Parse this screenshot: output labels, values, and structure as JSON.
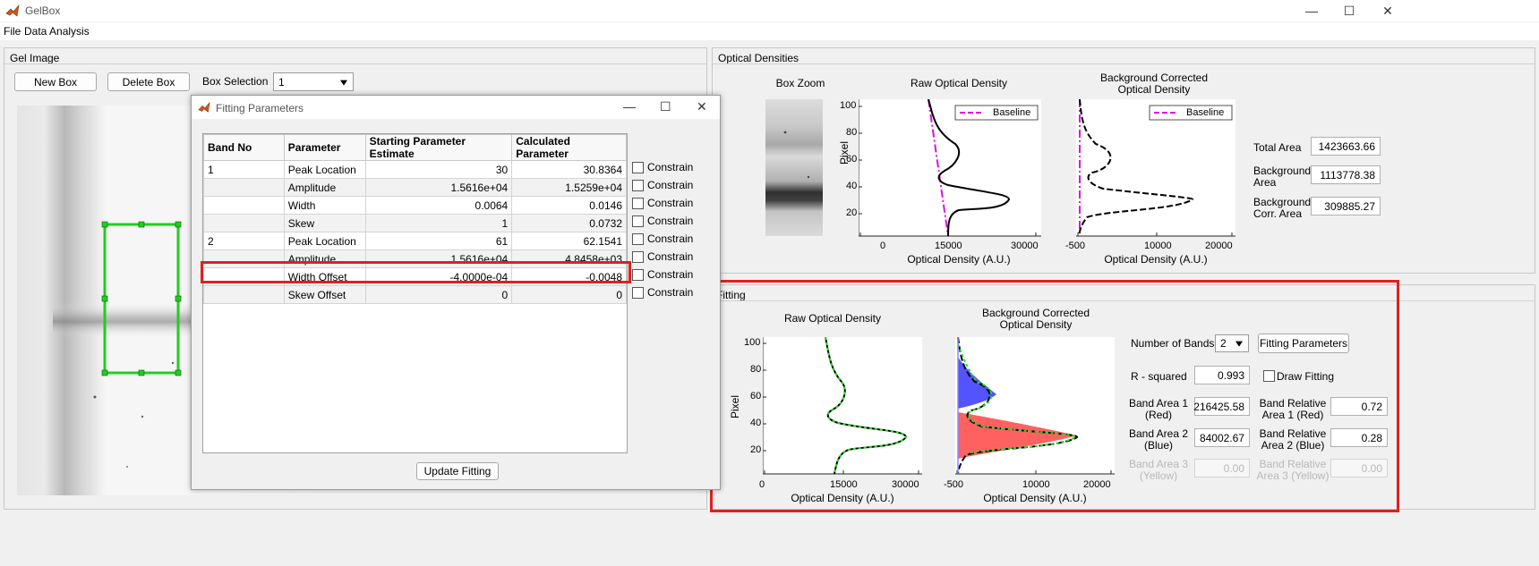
{
  "window": {
    "title": "GelBox",
    "minimize": "—",
    "maximize": "☐",
    "close": "✕"
  },
  "menu": {
    "items": [
      "File",
      "Data Analysis"
    ]
  },
  "gel_panel": {
    "title": "Gel Image",
    "new_box": "New Box",
    "delete_box": "Delete Box",
    "box_selection_label": "Box Selection",
    "box_selection_value": "1"
  },
  "dialog": {
    "title": "Fitting Parameters",
    "columns": [
      "Band No",
      "Parameter",
      "Starting Parameter Estimate",
      "Calculated Parameter"
    ],
    "rows": [
      {
        "band": "1",
        "param": "Peak Location",
        "start": "30",
        "calc": "30.8364"
      },
      {
        "band": "",
        "param": "Amplitude",
        "start": "1.5616e+04",
        "calc": "1.5259e+04"
      },
      {
        "band": "",
        "param": "Width",
        "start": "0.0064",
        "calc": "0.0146"
      },
      {
        "band": "",
        "param": "Skew",
        "start": "1",
        "calc": "0.0732"
      },
      {
        "band": "2",
        "param": "Peak Location",
        "start": "61",
        "calc": "62.1541"
      },
      {
        "band": "",
        "param": "Amplitude",
        "start": "1.5616e+04",
        "calc": "4.8458e+03"
      },
      {
        "band": "",
        "param": "Width Offset",
        "start": "-4.0000e-04",
        "calc": "-0.0048"
      },
      {
        "band": "",
        "param": "Skew Offset",
        "start": "0",
        "calc": "0"
      }
    ],
    "constrain_label": "Constrain",
    "update_button": "Update Fitting"
  },
  "od_panel": {
    "title": "Optical Densities",
    "box_zoom_title": "Box Zoom",
    "raw_title": "Raw Optical Density",
    "bg_title_1": "Background Corrected",
    "bg_title_2": "Optical Density",
    "legend_baseline": "Baseline",
    "ylabel": "Pixel",
    "xlabel": "Optical Density (A.U.)",
    "raw_xticks": [
      "0",
      "15000",
      "30000"
    ],
    "bg_xticks": [
      "-500",
      "10000",
      "20000"
    ],
    "yticks": [
      "100",
      "80",
      "60",
      "40",
      "20"
    ],
    "total_area_label": "Total Area",
    "total_area": "1423663.66",
    "bg_area_label_1": "Background",
    "bg_area_label_2": "Area",
    "bg_area": "1113778.38",
    "corr_area_label_1": "Background",
    "corr_area_label_2": "Corr. Area",
    "corr_area": "309885.27"
  },
  "fit_panel": {
    "title": "Fitting",
    "raw_title": "Raw Optical Density",
    "bg_title_1": "Background Corrected",
    "bg_title_2": "Optical Density",
    "ylabel": "Pixel",
    "xlabel": "Optical Density (A.U.)",
    "raw_xticks": [
      "0",
      "15000",
      "30000"
    ],
    "bg_xticks": [
      "-500",
      "10000",
      "20000"
    ],
    "yticks": [
      "100",
      "80",
      "60",
      "40",
      "20"
    ],
    "num_bands_label": "Number of Bands",
    "num_bands": "2",
    "fitting_params_button": "Fitting Parameters",
    "r_squared_label": "R - squared",
    "r_squared": "0.993",
    "draw_fitting_label": "Draw Fitting",
    "band1_label_1": "Band Area 1",
    "band1_label_2": "(Red)",
    "band1_area": "216425.58",
    "band2_label_1": "Band Area 2",
    "band2_label_2": "(Blue)",
    "band2_area": "84002.67",
    "band3_label_1": "Band Area 3",
    "band3_label_2": "(Yellow)",
    "band3_area": "0.00",
    "rel1_label_1": "Band Relative",
    "rel1_label_2": "Area 1 (Red)",
    "rel1": "0.72",
    "rel2_label_1": "Band Relative",
    "rel2_label_2": "Area 2 (Blue)",
    "rel2": "0.28",
    "rel3_label_1": "Band Relative",
    "rel3_label_2": "Area 3 (Yellow)",
    "rel3": "0.00"
  },
  "colors": {
    "band1": "#ff5050",
    "band2": "#4040ff",
    "baseline": "#e010e0",
    "fit": "#22dd22",
    "highlight": "#e02020",
    "roi": "#22cc22"
  }
}
